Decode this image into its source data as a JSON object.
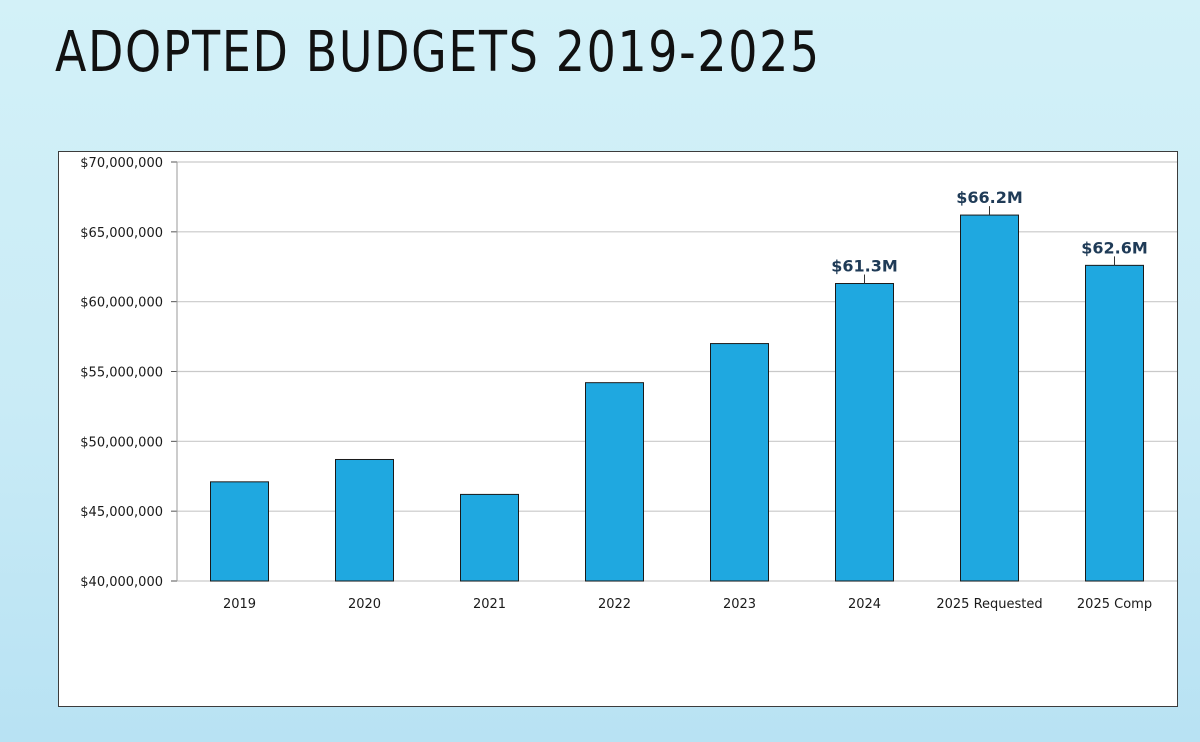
{
  "title": "ADOPTED BUDGETS 2019-2025",
  "colors": {
    "bar_fill": "#1fa8e0",
    "bar_stroke": "#1a1a1a",
    "gridline": "#c9c9c9",
    "data_label": "#1f3b57"
  },
  "chart_data": {
    "type": "bar",
    "title": "",
    "xlabel": "",
    "ylabel": "",
    "categories": [
      "2019",
      "2020",
      "2021",
      "2022",
      "2023",
      "2024",
      "2025 Requested",
      "2025 Comp"
    ],
    "values": [
      47100000,
      48700000,
      46200000,
      54200000,
      57000000,
      61300000,
      66200000,
      62600000
    ],
    "ylim": [
      40000000,
      70000000
    ],
    "y_ticks": [
      40000000,
      45000000,
      50000000,
      55000000,
      60000000,
      65000000,
      70000000
    ],
    "y_tick_labels": [
      "$40,000,000",
      "$45,000,000",
      "$50,000,000",
      "$55,000,000",
      "$60,000,000",
      "$65,000,000",
      "$70,000,000"
    ],
    "data_labels": [
      "",
      "",
      "",
      "",
      "",
      "$61.3M",
      "$66.2M",
      "$62.6M"
    ],
    "grid": true,
    "legend": "none"
  }
}
